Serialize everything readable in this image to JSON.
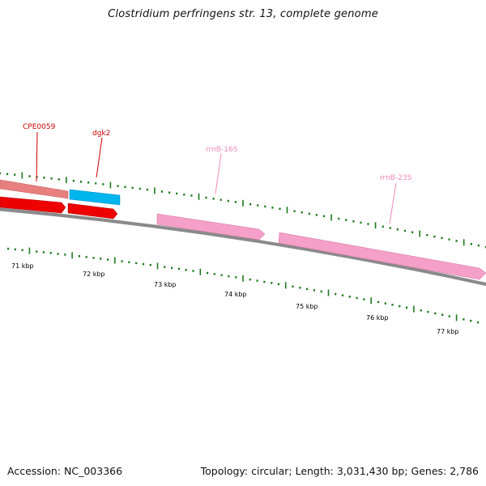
{
  "title": "Clostridium perfringens str. 13, complete genome",
  "footer": {
    "accession": "Accession: NC_003366",
    "summary": "Topology: circular; Length: 3,031,430 bp; Genes: 2,786"
  },
  "colors": {
    "backbone": "#8a8a8a",
    "tick": "#1f7a1f",
    "cds_forward": "#ee0000",
    "cds_reverse": "#e88080",
    "dgk_feature": "#00b4ee",
    "rrna": "#f4a0c8",
    "label_red": "#cc0000",
    "label_pink": "#ee88bb"
  },
  "map": {
    "kbp_labels": [
      "71 kbp",
      "72 kbp",
      "73 kbp",
      "74 kbp",
      "75 kbp",
      "76 kbp",
      "77 kbp"
    ],
    "features": [
      {
        "label": "CPE0059",
        "kind": "cds",
        "strand": "reverse"
      },
      {
        "label": "dgk2",
        "kind": "cds",
        "strand": "reverse"
      },
      {
        "label": "rrnB-16S",
        "kind": "rRNA",
        "strand": "forward"
      },
      {
        "label": "rrnB-23S",
        "kind": "rRNA",
        "strand": "forward"
      }
    ]
  }
}
